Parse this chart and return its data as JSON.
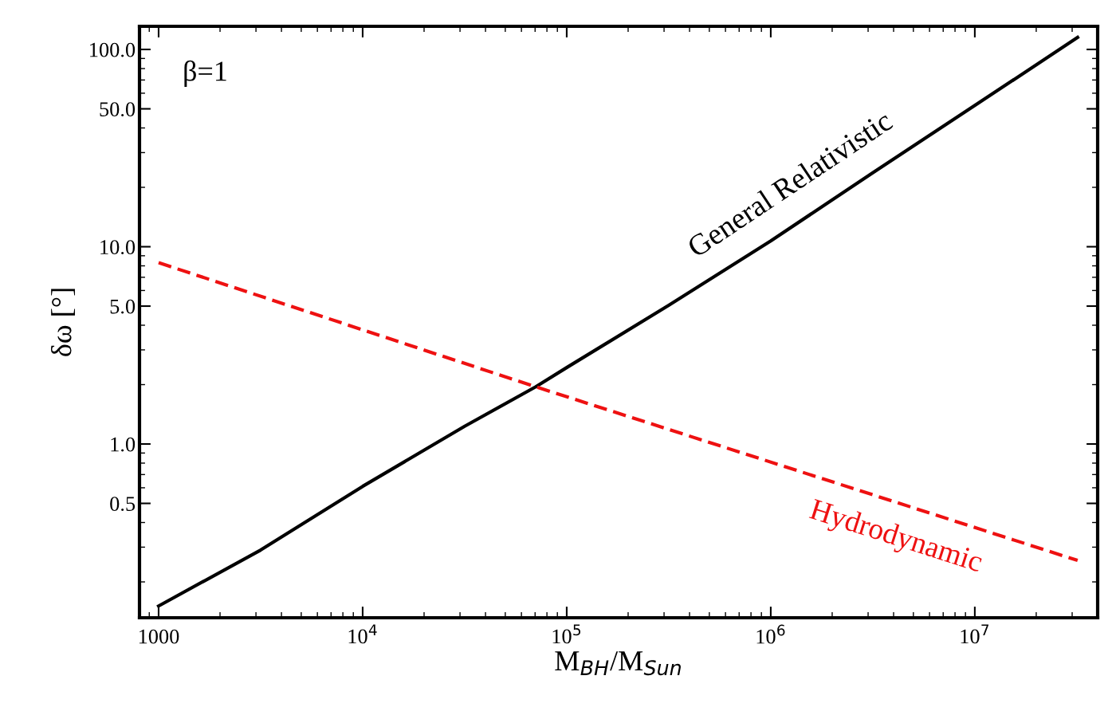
{
  "chart_data": {
    "type": "line",
    "xlabel": "M$_{BH}$/M$_{Sun}$",
    "ylabel": "δω [°]",
    "log": "xy",
    "grid": false,
    "legend": false,
    "marker": "none",
    "xlim": [
      806,
      40000000
    ],
    "ylim": [
      0.1316,
      131
    ],
    "xticks": [
      {
        "value": 1000,
        "label": "1000"
      },
      {
        "value": 10000,
        "label": "10$^{4}$"
      },
      {
        "value": 100000,
        "label": "10$^{5}$"
      },
      {
        "value": 1000000,
        "label": "10$^{6}$"
      },
      {
        "value": 10000000,
        "label": "10$^{7}$"
      }
    ],
    "yticks": [
      {
        "value": 0.5,
        "label": "0.5"
      },
      {
        "value": 1,
        "label": "1.0"
      },
      {
        "value": 5,
        "label": "5.0"
      },
      {
        "value": 10,
        "label": "10.0"
      },
      {
        "value": 50,
        "label": "50.0"
      },
      {
        "value": 100,
        "label": "100.0"
      }
    ],
    "annotations": [
      "β=1"
    ],
    "series": [
      {
        "name": "General Relativistic",
        "color": "#000000",
        "line_style": "solid",
        "x": [
          1000,
          3162,
          10000,
          31623,
          70500,
          100000,
          316228,
          1000000,
          3162278,
          10000000,
          31900000
        ],
        "values": [
          0.151,
          0.29,
          0.61,
          1.23,
          1.95,
          2.44,
          5.05,
          10.7,
          23.7,
          52,
          115
        ]
      },
      {
        "name": "Hydrodynamic",
        "color": "#ee1111",
        "line_style": "dashed",
        "x": [
          1000,
          70500,
          31900000
        ],
        "values": [
          8.3,
          1.95,
          0.257
        ]
      }
    ]
  }
}
